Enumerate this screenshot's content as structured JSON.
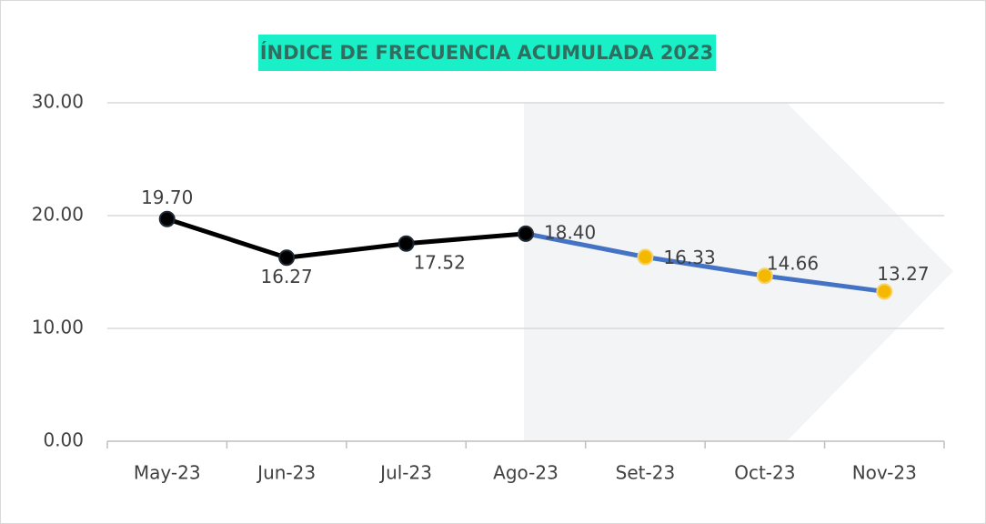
{
  "chart_data": {
    "type": "line",
    "title": "ÍNDICE DE FRECUENCIA ACUMULADA 2023",
    "categories": [
      "May-23",
      "Jun-23",
      "Jul-23",
      "Ago-23",
      "Set-23",
      "Oct-23",
      "Nov-23"
    ],
    "series": [
      {
        "color": "#000000",
        "marker_color": "#000000",
        "values": [
          19.7,
          16.27,
          17.52,
          18.4,
          null,
          null,
          null
        ],
        "value_labels": [
          "19.70",
          "16.27",
          "17.52",
          "18.40",
          null,
          null,
          null
        ]
      },
      {
        "color": "#4472c4",
        "marker_color": "#f5b800",
        "values": [
          null,
          null,
          null,
          18.4,
          16.33,
          14.66,
          13.27
        ],
        "value_labels": [
          null,
          null,
          null,
          null,
          "16.33",
          "14.66",
          "13.27"
        ]
      }
    ],
    "ylim": [
      0,
      30
    ],
    "yticks": [
      {
        "value": 0,
        "label": "0.00"
      },
      {
        "value": 10,
        "label": "10.00"
      },
      {
        "value": 20,
        "label": "20.00"
      },
      {
        "value": 30,
        "label": "30.00"
      }
    ],
    "grid": true
  }
}
